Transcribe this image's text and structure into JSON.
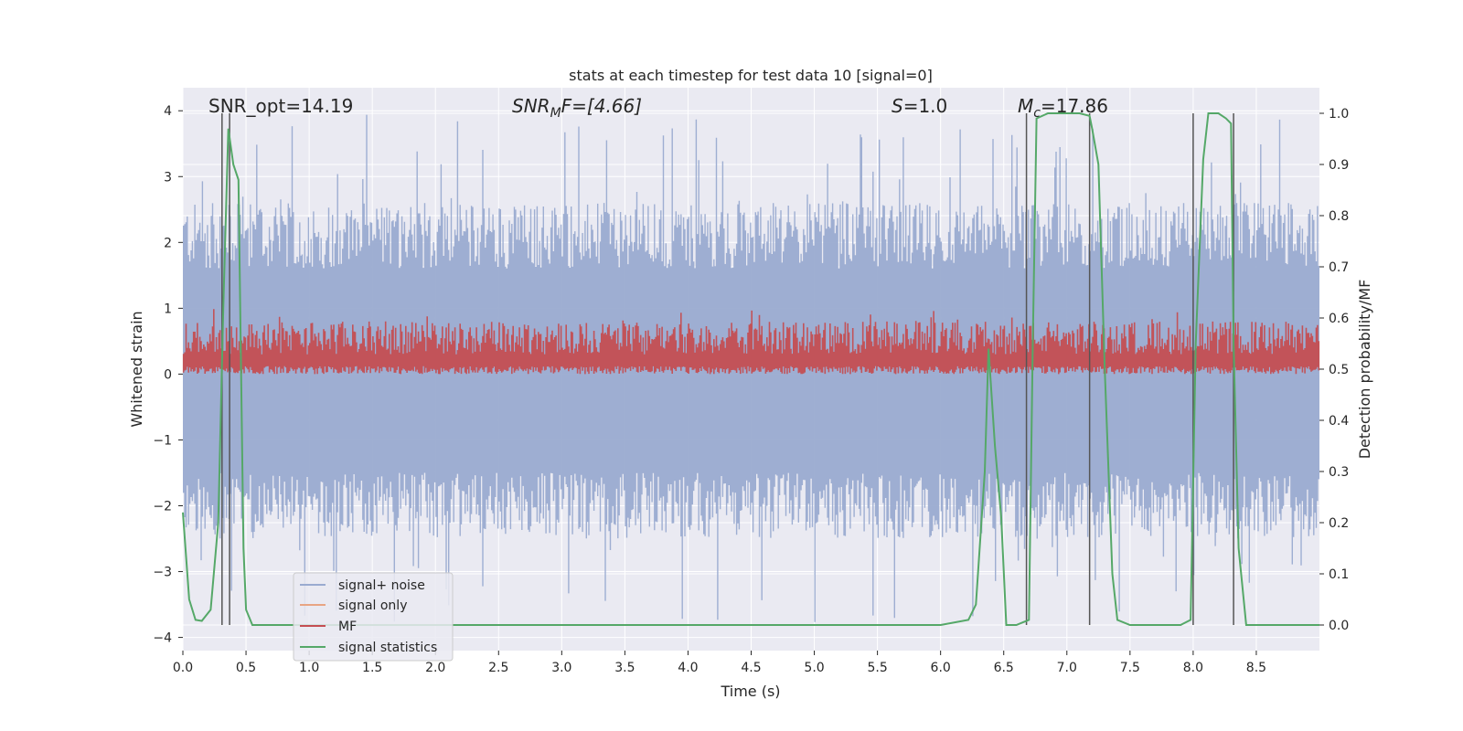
{
  "chart_data": {
    "type": "line",
    "title": "stats at each timestep for test data 10 [signal=0]",
    "xlabel": "Time (s)",
    "ylabel": "Whitened strain",
    "y2label": "Detection probability/MF",
    "xlim": [
      0.0,
      9.0
    ],
    "ylim": [
      -4.2,
      4.35
    ],
    "y2lim": [
      -0.05,
      1.05
    ],
    "xticks": [
      "0.0",
      "0.5",
      "1.0",
      "1.5",
      "2.0",
      "2.5",
      "3.0",
      "3.5",
      "4.0",
      "4.5",
      "5.0",
      "5.5",
      "6.0",
      "6.5",
      "7.0",
      "7.5",
      "8.0",
      "8.5"
    ],
    "yticks": [
      "4",
      "3",
      "2",
      "1",
      "0",
      "−1",
      "−2",
      "−3",
      "−4"
    ],
    "y2ticks": [
      "1.0",
      "0.9",
      "0.8",
      "0.7",
      "0.6",
      "0.5",
      "0.4",
      "0.3",
      "0.2",
      "0.1",
      "0.0"
    ],
    "grid": true,
    "annotations": {
      "snr_opt": "SNR_opt=14.19",
      "snr_mf": "SNR",
      "snr_mf_sub": "M",
      "snr_mf_tail": "F=[4.66]",
      "s_label": "S",
      "s_tail": "=1.0",
      "mc_label": "M",
      "mc_sub": "c",
      "mc_tail": "=17.86"
    },
    "legend": {
      "placement": "lower-left",
      "entries": [
        "signal+ noise",
        "signal only",
        "MF",
        "signal statistics"
      ]
    },
    "colors": {
      "noise": "#9aabd0",
      "signal_only": "#e8a583",
      "mf": "#c44e52",
      "stat": "#55a868",
      "vlines": "#555555",
      "background": "#eaeaf2",
      "grid": "#ffffff"
    },
    "series": [
      {
        "name": "signal statistics",
        "axis": "right",
        "x": [
          0.0,
          0.05,
          0.1,
          0.15,
          0.22,
          0.28,
          0.32,
          0.36,
          0.4,
          0.44,
          0.48,
          0.5,
          0.55,
          0.6,
          1.0,
          2.0,
          3.0,
          4.0,
          5.0,
          6.0,
          6.22,
          6.28,
          6.35,
          6.38,
          6.43,
          6.48,
          6.52,
          6.6,
          6.65,
          6.7,
          6.73,
          6.76,
          6.85,
          7.0,
          7.1,
          7.18,
          7.2,
          7.25,
          7.3,
          7.36,
          7.4,
          7.5,
          7.9,
          7.98,
          8.02,
          8.08,
          8.12,
          8.2,
          8.26,
          8.3,
          8.32,
          8.36,
          8.42,
          8.5,
          9.0
        ],
        "y": [
          0.22,
          0.05,
          0.01,
          0.008,
          0.03,
          0.2,
          0.62,
          0.97,
          0.9,
          0.87,
          0.15,
          0.03,
          0.0,
          0.0,
          0.0,
          0.0,
          0.0,
          0.0,
          0.0,
          0.0,
          0.01,
          0.04,
          0.3,
          0.54,
          0.35,
          0.21,
          0.0,
          0.0,
          0.005,
          0.01,
          0.55,
          0.99,
          1.0,
          1.0,
          1.0,
          0.995,
          0.97,
          0.9,
          0.5,
          0.1,
          0.01,
          0.0,
          0.0,
          0.01,
          0.55,
          0.91,
          1.0,
          1.0,
          0.99,
          0.98,
          0.55,
          0.15,
          0.0,
          0.0,
          0.0
        ]
      }
    ],
    "noise_band": {
      "name": "signal+ noise",
      "low": -1.5,
      "high": 1.6,
      "peak_max": 4.0,
      "peak_min": -3.8,
      "samples": 900
    },
    "mf_band": {
      "name": "MF",
      "low": 0.0,
      "high": 0.55,
      "peak_max": 1.0,
      "samples": 900
    },
    "vlines_x": [
      0.31,
      0.37,
      6.68,
      7.18,
      8.0,
      8.32
    ]
  }
}
